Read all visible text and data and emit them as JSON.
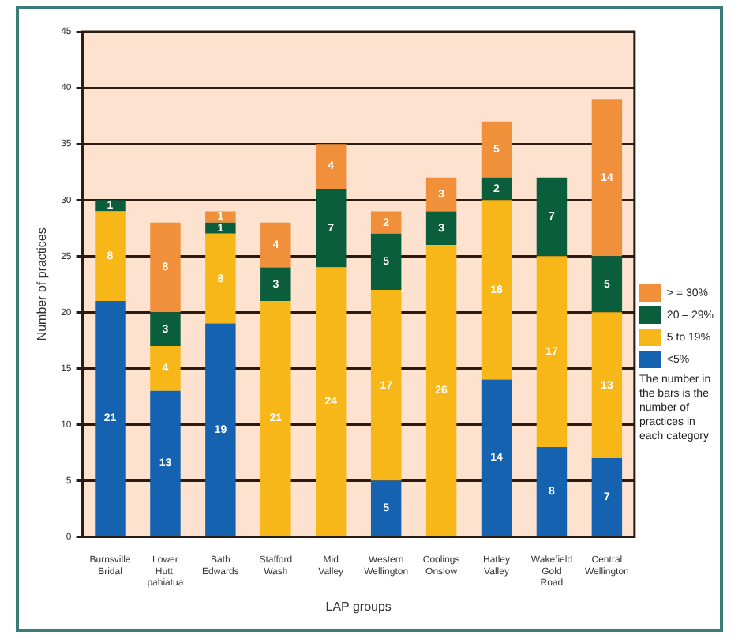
{
  "chart_data": {
    "type": "bar",
    "stacked": true,
    "xlabel": "LAP groups",
    "ylabel": "Number of practices",
    "categories": [
      "Burnsville Bridal",
      "Lower Hutt, pahiatua",
      "Bath Edwards",
      "Stafford Wash",
      "Mid Valley",
      "Western Wellington",
      "Coolings Onslow",
      "Hatley Valley",
      "Wakefield Gold Road",
      "Central Wellington"
    ],
    "series": [
      {
        "name": "<5%",
        "color": "#1462b0",
        "values": [
          21,
          13,
          19,
          null,
          null,
          5,
          null,
          14,
          8,
          7
        ]
      },
      {
        "name": "5 to 19%",
        "color": "#f7b718",
        "values": [
          8,
          4,
          8,
          21,
          24,
          17,
          26,
          16,
          17,
          13
        ]
      },
      {
        "name": "20 – 29%",
        "color": "#0b5e3c",
        "values": [
          1,
          3,
          1,
          3,
          7,
          5,
          3,
          2,
          7,
          5
        ]
      },
      {
        "name": "> = 30%",
        "color": "#f0903a",
        "values": [
          null,
          8,
          1,
          4,
          4,
          2,
          3,
          5,
          null,
          14
        ]
      }
    ],
    "ylim": [
      0,
      45
    ],
    "yticks": [
      0,
      5,
      10,
      15,
      20,
      25,
      30,
      35,
      40,
      45
    ],
    "grid": "y",
    "legend": "right",
    "data_labels": true,
    "annotations": [
      "The number in the bars is the number of practices in each category"
    ]
  }
}
